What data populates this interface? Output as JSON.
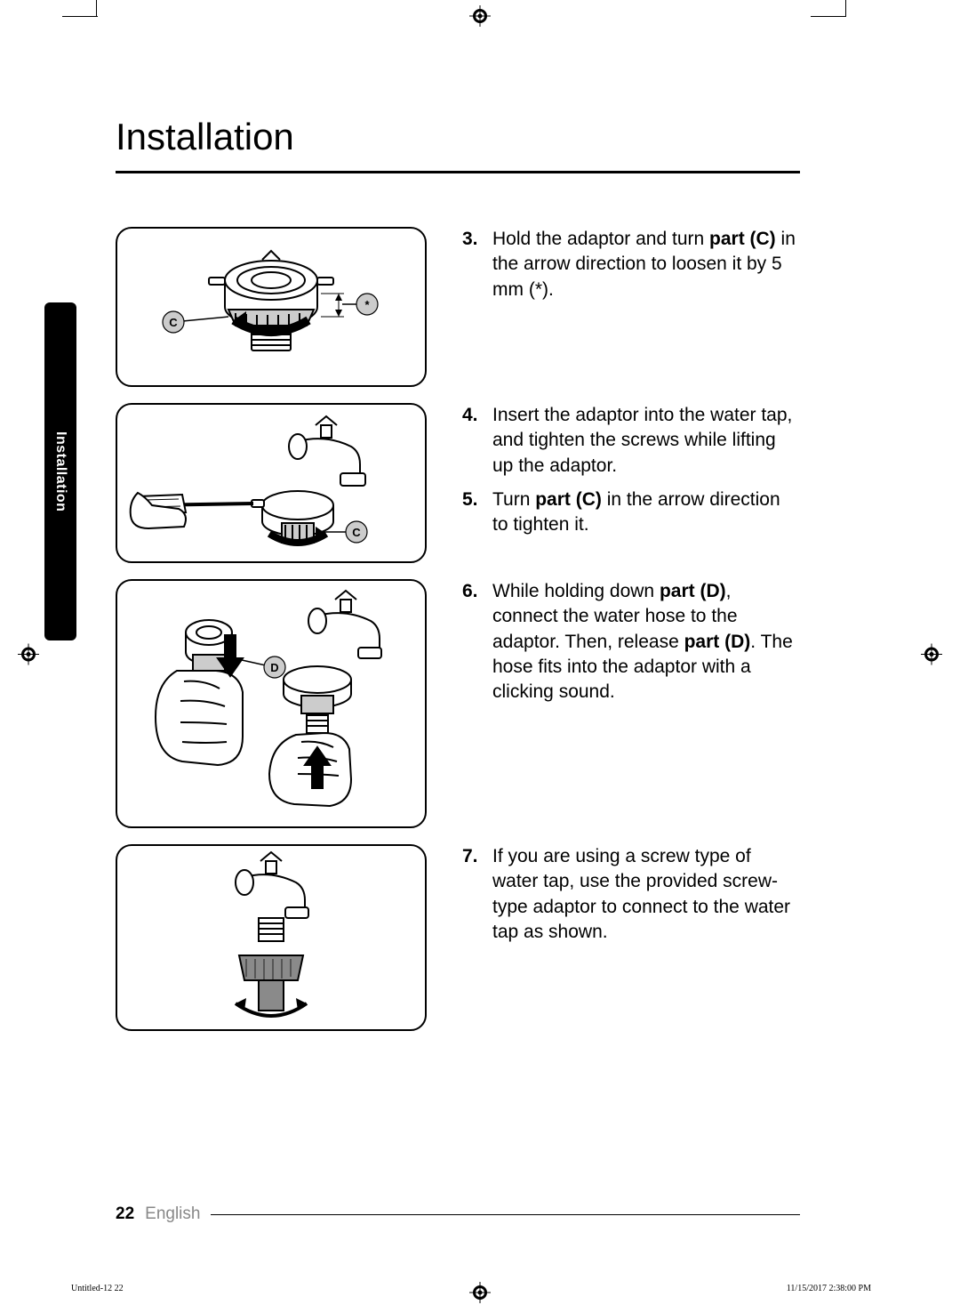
{
  "heading": "Installation",
  "side_tab": "Installation",
  "steps": [
    {
      "num": "3.",
      "html": "Hold the adaptor and turn <b>part (C)</b> in the arrow direction to loosen it by 5 mm (*).",
      "labels": [
        "C",
        "*"
      ]
    },
    {
      "num": "4.",
      "html": "Insert the adaptor into the water tap, and tighten the screws while lifting up the adaptor.",
      "labels": [
        "C"
      ]
    },
    {
      "num": "5.",
      "html": "Turn <b>part (C)</b> in the arrow direction to tighten it."
    },
    {
      "num": "6.",
      "html": "While holding down <b>part (D)</b>, connect the water hose to the adaptor. Then, release <b>part (D)</b>. The hose fits into the adaptor with a clicking sound.",
      "labels": [
        "D"
      ]
    },
    {
      "num": "7.",
      "html": "If you are using a screw type of water tap, use the provided screw-type adaptor to connect to the water tap as shown."
    }
  ],
  "page_number": "22",
  "language": "English",
  "slug_left": "Untitled-12   22",
  "slug_right": "11/15/2017   2:38:00 PM",
  "colors": {
    "text": "#000000",
    "muted": "#888888",
    "label_fill": "#cccccc",
    "rule": "#000000",
    "bg": "#ffffff"
  }
}
